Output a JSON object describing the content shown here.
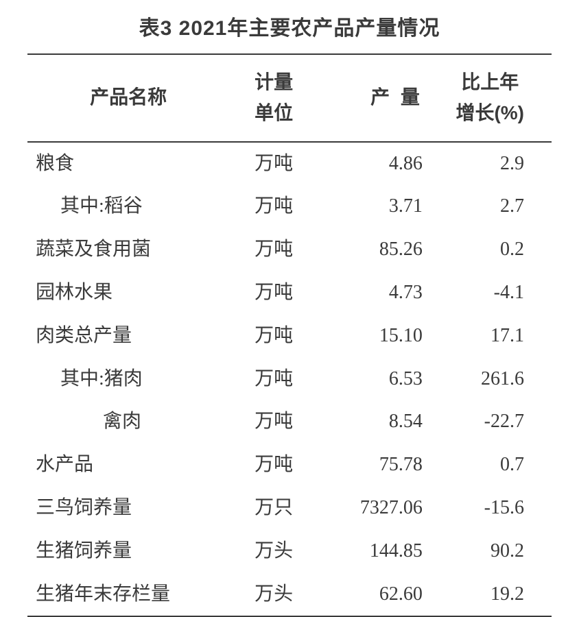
{
  "table": {
    "type": "table",
    "title": "表3 2021年主要农产品产量情况",
    "background_color": "#ffffff",
    "text_color": "#3a3a3a",
    "border_color": "#3a3a3a",
    "title_fontsize": 30,
    "body_fontsize": 28,
    "columns": [
      {
        "key": "name",
        "label": "产品名称",
        "align": "left",
        "width_pct": 38
      },
      {
        "key": "unit",
        "label": "计量\n单位",
        "align": "center",
        "width_pct": 18
      },
      {
        "key": "yield",
        "label": "产 量",
        "align": "right",
        "width_pct": 22
      },
      {
        "key": "growth",
        "label": "比上年\n增长(%)",
        "align": "right",
        "width_pct": 22
      }
    ],
    "header_labels": {
      "name": "产品名称",
      "unit_line1": "计量",
      "unit_line2": "单位",
      "yield": "产 量",
      "growth_line1": "比上年",
      "growth_line2": "增长(%)"
    },
    "rows": [
      {
        "name": "粮食",
        "unit": "万吨",
        "yield": "4.86",
        "growth": "2.9",
        "indent": 0
      },
      {
        "name": "其中:稻谷",
        "unit": "万吨",
        "yield": "3.71",
        "growth": "2.7",
        "indent": 1
      },
      {
        "name": "蔬菜及食用菌",
        "unit": "万吨",
        "yield": "85.26",
        "growth": "0.2",
        "indent": 0
      },
      {
        "name": "园林水果",
        "unit": "万吨",
        "yield": "4.73",
        "growth": "-4.1",
        "indent": 0
      },
      {
        "name": "肉类总产量",
        "unit": "万吨",
        "yield": "15.10",
        "growth": "17.1",
        "indent": 0
      },
      {
        "name": "其中:猪肉",
        "unit": "万吨",
        "yield": "6.53",
        "growth": "261.6",
        "indent": 1
      },
      {
        "name": "禽肉",
        "unit": "万吨",
        "yield": "8.54",
        "growth": "-22.7",
        "indent": 2
      },
      {
        "name": "水产品",
        "unit": "万吨",
        "yield": "75.78",
        "growth": "0.7",
        "indent": 0
      },
      {
        "name": "三鸟饲养量",
        "unit": "万只",
        "yield": "7327.06",
        "growth": "-15.6",
        "indent": 0
      },
      {
        "name": "生猪饲养量",
        "unit": "万头",
        "yield": "144.85",
        "growth": "90.2",
        "indent": 0
      },
      {
        "name": "生猪年末存栏量",
        "unit": "万头",
        "yield": "62.60",
        "growth": "19.2",
        "indent": 0
      }
    ]
  }
}
